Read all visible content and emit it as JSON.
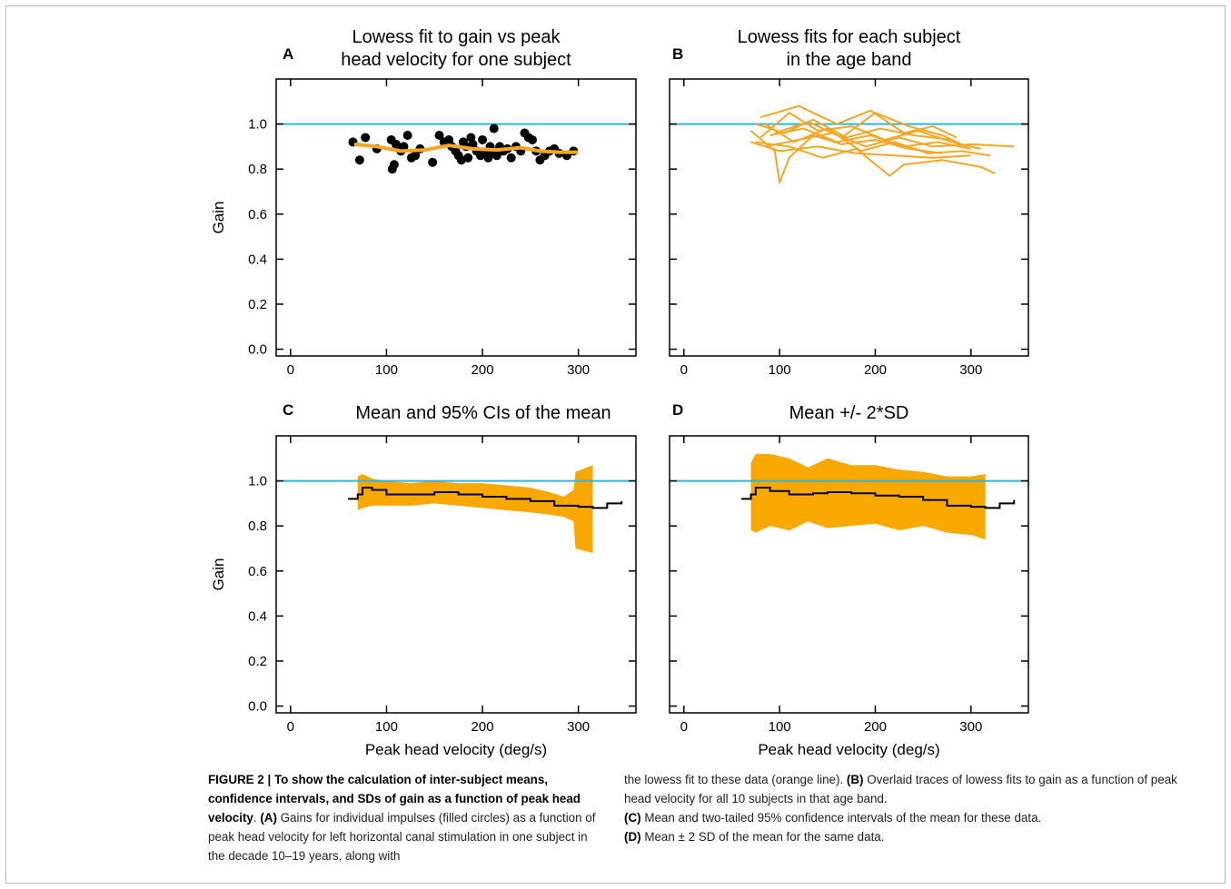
{
  "chart_data": [
    {
      "panel": "A",
      "type": "scatter",
      "title_lines": [
        "Lowess fit to gain vs peak",
        "head velocity for one subject"
      ],
      "xlabel": "",
      "ylabel": "Gain",
      "xlim": [
        -15,
        360
      ],
      "ylim": [
        -0.03,
        1.2
      ],
      "xticks": [
        0,
        100,
        200,
        300
      ],
      "yticks": [
        0.0,
        0.2,
        0.4,
        0.6,
        0.8,
        1.0
      ],
      "reference_line": 1.0,
      "points": [
        [
          65,
          0.92
        ],
        [
          72,
          0.84
        ],
        [
          78,
          0.94
        ],
        [
          90,
          0.89
        ],
        [
          105,
          0.93
        ],
        [
          106,
          0.8
        ],
        [
          108,
          0.82
        ],
        [
          110,
          0.91
        ],
        [
          115,
          0.88
        ],
        [
          118,
          0.9
        ],
        [
          122,
          0.95
        ],
        [
          126,
          0.85
        ],
        [
          130,
          0.86
        ],
        [
          135,
          0.89
        ],
        [
          148,
          0.83
        ],
        [
          155,
          0.95
        ],
        [
          160,
          0.92
        ],
        [
          165,
          0.93
        ],
        [
          168,
          0.9
        ],
        [
          172,
          0.88
        ],
        [
          175,
          0.86
        ],
        [
          178,
          0.84
        ],
        [
          180,
          0.92
        ],
        [
          183,
          0.9
        ],
        [
          185,
          0.85
        ],
        [
          188,
          0.94
        ],
        [
          190,
          0.91
        ],
        [
          194,
          0.88
        ],
        [
          198,
          0.86
        ],
        [
          200,
          0.93
        ],
        [
          203,
          0.87
        ],
        [
          206,
          0.85
        ],
        [
          208,
          0.9
        ],
        [
          210,
          0.88
        ],
        [
          212,
          0.98
        ],
        [
          215,
          0.86
        ],
        [
          218,
          0.9
        ],
        [
          222,
          0.88
        ],
        [
          226,
          0.89
        ],
        [
          230,
          0.85
        ],
        [
          235,
          0.9
        ],
        [
          240,
          0.88
        ],
        [
          244,
          0.96
        ],
        [
          248,
          0.94
        ],
        [
          252,
          0.93
        ],
        [
          256,
          0.88
        ],
        [
          260,
          0.84
        ],
        [
          265,
          0.86
        ],
        [
          270,
          0.88
        ],
        [
          275,
          0.89
        ],
        [
          280,
          0.87
        ],
        [
          288,
          0.86
        ],
        [
          295,
          0.88
        ]
      ],
      "fit_line": [
        [
          68,
          0.91
        ],
        [
          90,
          0.9
        ],
        [
          115,
          0.88
        ],
        [
          140,
          0.885
        ],
        [
          165,
          0.905
        ],
        [
          190,
          0.89
        ],
        [
          215,
          0.885
        ],
        [
          240,
          0.895
        ],
        [
          260,
          0.88
        ],
        [
          280,
          0.875
        ],
        [
          298,
          0.875
        ]
      ],
      "colors": {
        "points": "#000000",
        "fit": "#f5a623",
        "reference": "#29b6e6"
      }
    },
    {
      "panel": "B",
      "type": "line",
      "title_lines": [
        "Lowess fits for each subject",
        "in the age band"
      ],
      "xlabel": "",
      "ylabel": "",
      "xlim": [
        -15,
        360
      ],
      "ylim": [
        -0.03,
        1.2
      ],
      "xticks": [
        0,
        100,
        200,
        300
      ],
      "reference_line": 1.0,
      "series": [
        {
          "values": [
            [
              70,
              0.92
            ],
            [
              100,
              0.88
            ],
            [
              140,
              0.9
            ],
            [
              180,
              0.87
            ],
            [
              220,
              0.86
            ],
            [
              260,
              0.85
            ],
            [
              300,
              0.86
            ]
          ]
        },
        {
          "values": [
            [
              75,
              1.0
            ],
            [
              105,
              0.96
            ],
            [
              135,
              1.02
            ],
            [
              170,
              0.94
            ],
            [
              205,
              0.98
            ],
            [
              240,
              0.95
            ],
            [
              280,
              0.93
            ]
          ]
        },
        {
          "values": [
            [
              80,
              0.94
            ],
            [
              110,
              1.05
            ],
            [
              140,
              0.97
            ],
            [
              175,
              0.99
            ],
            [
              210,
              0.93
            ],
            [
              245,
              0.97
            ],
            [
              280,
              0.92
            ],
            [
              310,
              0.89
            ]
          ]
        },
        {
          "values": [
            [
              70,
              0.97
            ],
            [
              95,
              0.88
            ],
            [
              100,
              0.74
            ],
            [
              110,
              0.85
            ],
            [
              135,
              0.95
            ],
            [
              165,
              0.91
            ],
            [
              200,
              0.93
            ],
            [
              235,
              0.89
            ],
            [
              270,
              0.87
            ]
          ]
        },
        {
          "values": [
            [
              85,
              0.9
            ],
            [
              120,
              0.93
            ],
            [
              155,
              0.96
            ],
            [
              190,
              0.9
            ],
            [
              225,
              0.94
            ],
            [
              260,
              0.9
            ],
            [
              300,
              0.91
            ],
            [
              345,
              0.9
            ]
          ]
        },
        {
          "values": [
            [
              75,
              0.92
            ],
            [
              110,
              0.9
            ],
            [
              145,
              0.85
            ],
            [
              180,
              0.89
            ],
            [
              215,
              0.77
            ],
            [
              230,
              0.82
            ],
            [
              270,
              0.84
            ],
            [
              310,
              0.81
            ],
            [
              325,
              0.78
            ]
          ]
        },
        {
          "values": [
            [
              80,
              1.03
            ],
            [
              120,
              1.08
            ],
            [
              160,
              1.0
            ],
            [
              195,
              1.06
            ],
            [
              230,
              0.96
            ],
            [
              260,
              0.99
            ],
            [
              285,
              0.94
            ]
          ]
        },
        {
          "values": [
            [
              90,
              0.95
            ],
            [
              125,
              0.98
            ],
            [
              160,
              0.92
            ],
            [
              195,
              0.95
            ],
            [
              230,
              0.9
            ],
            [
              265,
              0.92
            ],
            [
              300,
              0.89
            ]
          ]
        },
        {
          "values": [
            [
              85,
              1.0
            ],
            [
              115,
              0.92
            ],
            [
              150,
              0.98
            ],
            [
              185,
              0.88
            ],
            [
              220,
              0.92
            ],
            [
              255,
              0.87
            ],
            [
              290,
              0.88
            ],
            [
              320,
              0.86
            ]
          ]
        },
        {
          "values": [
            [
              95,
              0.96
            ],
            [
              130,
              1.01
            ],
            [
              165,
              0.94
            ],
            [
              200,
              1.05
            ],
            [
              235,
              0.99
            ],
            [
              270,
              0.95
            ],
            [
              295,
              0.9
            ]
          ]
        }
      ],
      "colors": {
        "lines": "#f5a623",
        "reference": "#29b6e6"
      }
    },
    {
      "panel": "C",
      "type": "area",
      "title_lines": [
        "Mean and 95% CIs of the mean"
      ],
      "xlabel": "Peak head velocity (deg/s)",
      "ylabel": "Gain",
      "xlim": [
        -15,
        360
      ],
      "ylim": [
        -0.03,
        1.2
      ],
      "xticks": [
        0,
        100,
        200,
        300
      ],
      "yticks": [
        0.0,
        0.2,
        0.4,
        0.6,
        0.8,
        1.0
      ],
      "reference_line": 1.0,
      "mean_line": [
        [
          60,
          0.92
        ],
        [
          70,
          0.94
        ],
        [
          75,
          0.97
        ],
        [
          85,
          0.96
        ],
        [
          100,
          0.94
        ],
        [
          125,
          0.94
        ],
        [
          150,
          0.95
        ],
        [
          175,
          0.94
        ],
        [
          200,
          0.93
        ],
        [
          225,
          0.92
        ],
        [
          250,
          0.91
        ],
        [
          275,
          0.89
        ],
        [
          300,
          0.885
        ],
        [
          315,
          0.88
        ],
        [
          330,
          0.9
        ],
        [
          345,
          0.91
        ]
      ],
      "band": [
        [
          70,
          0.87,
          1.02
        ],
        [
          75,
          0.88,
          1.03
        ],
        [
          85,
          0.89,
          1.01
        ],
        [
          100,
          0.89,
          1.0
        ],
        [
          125,
          0.89,
          0.99
        ],
        [
          150,
          0.9,
          1.0
        ],
        [
          175,
          0.89,
          0.99
        ],
        [
          200,
          0.88,
          0.99
        ],
        [
          225,
          0.87,
          0.98
        ],
        [
          250,
          0.86,
          0.97
        ],
        [
          270,
          0.85,
          0.95
        ],
        [
          285,
          0.84,
          0.93
        ],
        [
          295,
          0.82,
          0.96
        ],
        [
          297,
          0.7,
          1.04
        ],
        [
          315,
          0.68,
          1.07
        ]
      ],
      "colors": {
        "band": "#f9a800",
        "mean": "#000000",
        "reference": "#29b6e6"
      }
    },
    {
      "panel": "D",
      "type": "area",
      "title_lines": [
        "Mean +/- 2*SD"
      ],
      "xlabel": "Peak head velocity (deg/s)",
      "ylabel": "",
      "xlim": [
        -15,
        360
      ],
      "ylim": [
        -0.03,
        1.2
      ],
      "xticks": [
        0,
        100,
        200,
        300
      ],
      "reference_line": 1.0,
      "mean_line": [
        [
          60,
          0.92
        ],
        [
          70,
          0.94
        ],
        [
          75,
          0.97
        ],
        [
          90,
          0.955
        ],
        [
          110,
          0.94
        ],
        [
          135,
          0.945
        ],
        [
          150,
          0.95
        ],
        [
          175,
          0.945
        ],
        [
          200,
          0.935
        ],
        [
          225,
          0.93
        ],
        [
          250,
          0.915
        ],
        [
          275,
          0.89
        ],
        [
          300,
          0.885
        ],
        [
          315,
          0.88
        ],
        [
          330,
          0.9
        ],
        [
          345,
          0.915
        ]
      ],
      "band": [
        [
          70,
          0.78,
          1.08
        ],
        [
          75,
          0.77,
          1.12
        ],
        [
          90,
          0.8,
          1.12
        ],
        [
          110,
          0.78,
          1.1
        ],
        [
          130,
          0.82,
          1.06
        ],
        [
          150,
          0.79,
          1.1
        ],
        [
          175,
          0.8,
          1.07
        ],
        [
          200,
          0.81,
          1.07
        ],
        [
          225,
          0.78,
          1.05
        ],
        [
          250,
          0.8,
          1.04
        ],
        [
          275,
          0.77,
          1.02
        ],
        [
          300,
          0.76,
          1.02
        ],
        [
          315,
          0.74,
          1.03
        ]
      ],
      "colors": {
        "band": "#f9a800",
        "mean": "#000000",
        "reference": "#29b6e6"
      }
    }
  ],
  "caption": {
    "left": {
      "bold_lead": "FIGURE 2 | To show the calculation of inter-subject means, confidence intervals, and SDs of gain as a function of peak head velocity",
      "period": ". ",
      "a_label": "(A)",
      "a_text": " Gains for individual impulses (filled circles) as a function of peak head velocity for left horizontal canal stimulation in one subject in the decade 10–19 years, along with"
    },
    "right": {
      "a_cont": "the lowess fit to these data (orange line). ",
      "b_label": "(B)",
      "b_text": " Overlaid traces of lowess fits to gain as a function of peak head velocity for all 10 subjects in that age band.",
      "c_label": "(C)",
      "c_text": " Mean and two-tailed 95% confidence intervals of the mean for these data.",
      "d_label": "(D)",
      "d_text": " Mean ± 2 SD of the mean for the same data."
    }
  }
}
